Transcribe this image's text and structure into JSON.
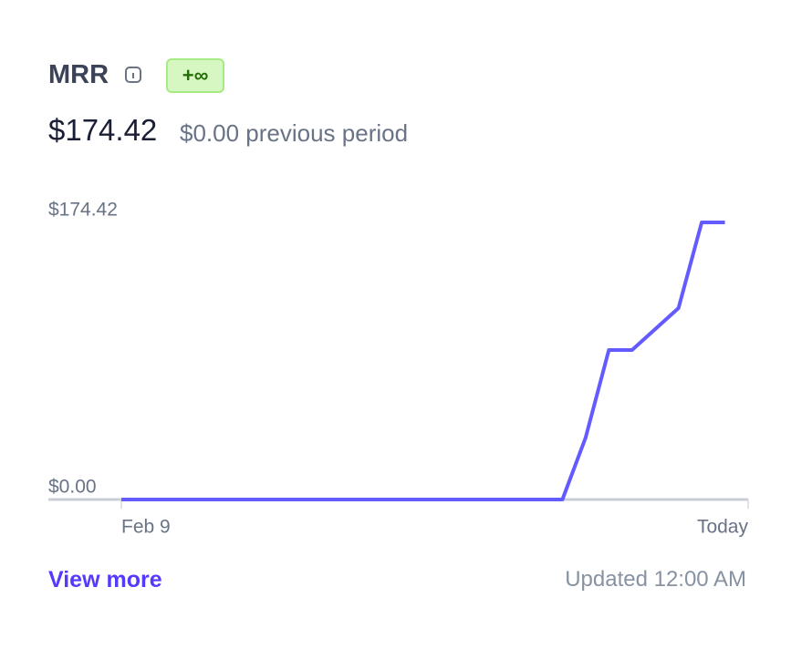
{
  "header": {
    "title": "MRR",
    "badge": "+∞",
    "value": "$174.42",
    "previous": "$0.00 previous period"
  },
  "chart_data": {
    "type": "line",
    "categories": [
      "Feb 9",
      null,
      null,
      null,
      null,
      null,
      null,
      null,
      null,
      null,
      null,
      null,
      null,
      null,
      null,
      null,
      null,
      null,
      null,
      null,
      null,
      null,
      null,
      null,
      null,
      null,
      null,
      "Today"
    ],
    "series": [
      {
        "name": "MRR",
        "color": "#635bff",
        "values": [
          0,
          0,
          0,
          0,
          0,
          0,
          0,
          0,
          0,
          0,
          0,
          0,
          0,
          0,
          0,
          0,
          0,
          0,
          0,
          0,
          39.0,
          94.1,
          94.1,
          107.3,
          120.5,
          174.42,
          174.42,
          null
        ]
      }
    ],
    "ylim": [
      0,
      174.42
    ],
    "yticks": [
      {
        "value": 0,
        "label": "$0.00"
      },
      {
        "value": 174.42,
        "label": "$174.42"
      }
    ]
  },
  "footer": {
    "link": "View more",
    "updated": "Updated 12:00 AM"
  }
}
